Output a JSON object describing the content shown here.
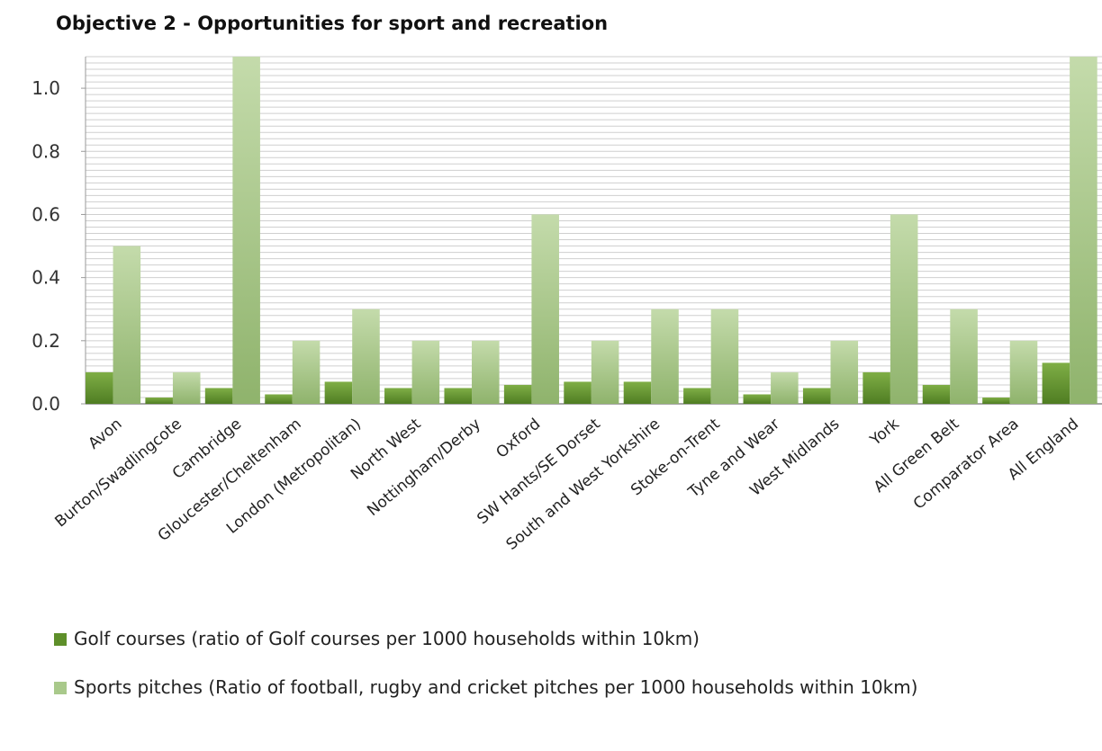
{
  "chart_data": {
    "type": "bar",
    "title": "Objective 2 - Opportunities for sport and recreation",
    "xlabel": "",
    "ylabel": "",
    "ylim": [
      0,
      1.1
    ],
    "yticks": [
      "0.0",
      "0.2",
      "0.4",
      "0.6",
      "0.8",
      "1.0"
    ],
    "grid": true,
    "legend_position": "bottom",
    "categories": [
      "Avon",
      "Burton/Swadlingcote",
      "Cambridge",
      "Gloucester/Cheltenham",
      "London (Metropolitan)",
      "North West",
      "Nottingham/Derby",
      "Oxford",
      "SW Hants/SE Dorset",
      "South and West Yorkshire",
      "Stoke-on-Trent",
      "Tyne and Wear",
      "West Midlands",
      "York",
      "All Green Belt",
      "Comparator Area",
      "All England"
    ],
    "series": [
      {
        "name": "Golf courses (ratio of Golf courses per 1000 households within 10km)",
        "color": "#5e8f2a",
        "values": [
          0.1,
          0.02,
          0.05,
          0.03,
          0.07,
          0.05,
          0.05,
          0.06,
          0.07,
          0.07,
          0.05,
          0.03,
          0.05,
          0.1,
          0.06,
          0.02,
          0.13
        ]
      },
      {
        "name": "Sports pitches (Ratio of football, rugby and cricket pitches per 1000 households within 10km)",
        "color": "#a9c98b",
        "values": [
          0.5,
          0.1,
          1.1,
          0.2,
          0.3,
          0.2,
          0.2,
          0.6,
          0.2,
          0.3,
          0.3,
          0.1,
          0.2,
          0.6,
          0.3,
          0.2,
          1.1
        ]
      }
    ]
  }
}
